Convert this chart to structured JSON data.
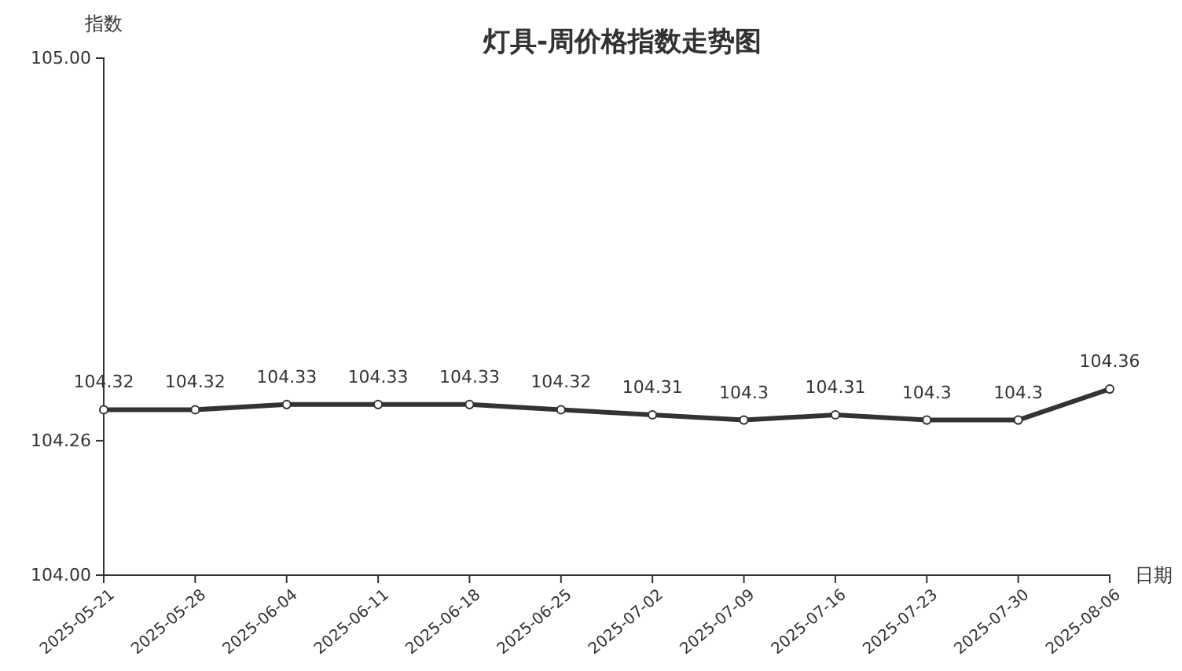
{
  "chart_data": {
    "type": "line",
    "title": "灯具-周价格指数走势图",
    "xlabel": "日期",
    "ylabel": "指数",
    "categories": [
      "2025-05-21",
      "2025-05-28",
      "2025-06-04",
      "2025-06-11",
      "2025-06-18",
      "2025-06-25",
      "2025-07-02",
      "2025-07-09",
      "2025-07-16",
      "2025-07-23",
      "2025-07-30",
      "2025-08-06"
    ],
    "series": [
      {
        "color": "#333333",
        "values": [
          104.32,
          104.32,
          104.33,
          104.33,
          104.33,
          104.32,
          104.31,
          104.3,
          104.31,
          104.3,
          104.3,
          104.36
        ]
      }
    ],
    "ylim": [
      104,
      105
    ],
    "yticks": [
      {
        "value": 104,
        "label": "104.00"
      },
      {
        "value": 104.26,
        "label": "104.26"
      },
      {
        "value": 105,
        "label": "105.00"
      }
    ],
    "marker": "circle",
    "data_labels": true,
    "grid": false
  }
}
